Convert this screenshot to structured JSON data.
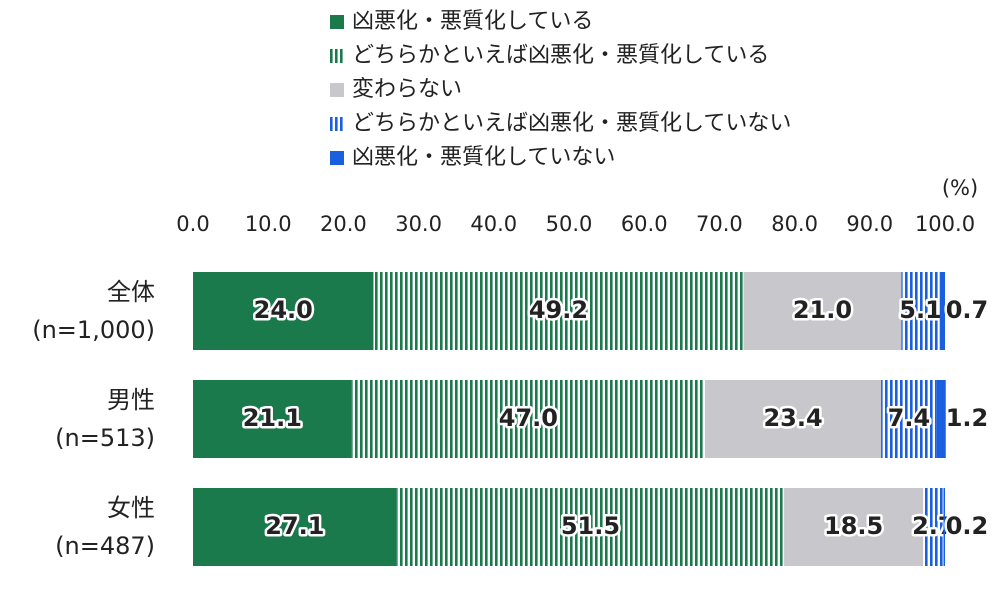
{
  "chart_data": {
    "type": "stacked-bar-horizontal",
    "unit": "(%)",
    "categories": [
      "全体",
      "男性",
      "女性"
    ],
    "sample_sizes": [
      "(n=1,000)",
      "(n=513)",
      "(n=487)"
    ],
    "xlim": [
      0,
      100
    ],
    "xticks": [
      {
        "value": 0,
        "label": "0.0"
      },
      {
        "value": 10,
        "label": "10.0"
      },
      {
        "value": 20,
        "label": "20.0"
      },
      {
        "value": 30,
        "label": "30.0"
      },
      {
        "value": 40,
        "label": "40.0"
      },
      {
        "value": 50,
        "label": "50.0"
      },
      {
        "value": 60,
        "label": "60.0"
      },
      {
        "value": 70,
        "label": "70.0"
      },
      {
        "value": 80,
        "label": "80.0"
      },
      {
        "value": 90,
        "label": "90.0"
      },
      {
        "value": 100,
        "label": "100.0"
      }
    ],
    "series": [
      {
        "name": "凶悪化・悪質化している",
        "color": "#1b7a4c",
        "pattern": "solid",
        "values": [
          24.0,
          21.1,
          27.1
        ],
        "value_labels": [
          "24.0",
          "21.1",
          "27.1"
        ]
      },
      {
        "name": "どちらかといえば凶悪化・悪質化している",
        "color": "#1b7a4c",
        "pattern": "stripes",
        "values": [
          49.2,
          47.0,
          51.5
        ],
        "value_labels": [
          "49.2",
          "47.0",
          "51.5"
        ]
      },
      {
        "name": "変わらない",
        "color": "#c8c8cc",
        "pattern": "solid",
        "values": [
          21.0,
          23.4,
          18.5
        ],
        "value_labels": [
          "21.0",
          "23.4",
          "18.5"
        ]
      },
      {
        "name": "どちらかといえば凶悪化・悪質化していない",
        "color": "#1a5fe0",
        "pattern": "stripes",
        "values": [
          5.1,
          7.4,
          2.7
        ],
        "value_labels": [
          "5.1",
          "7.4",
          "2.7"
        ]
      },
      {
        "name": "凶悪化・悪質化していない",
        "color": "#1a5fe0",
        "pattern": "solid",
        "values": [
          0.7,
          1.2,
          0.2
        ],
        "value_labels": [
          "0.7",
          "1.2",
          "0.2"
        ]
      }
    ]
  }
}
